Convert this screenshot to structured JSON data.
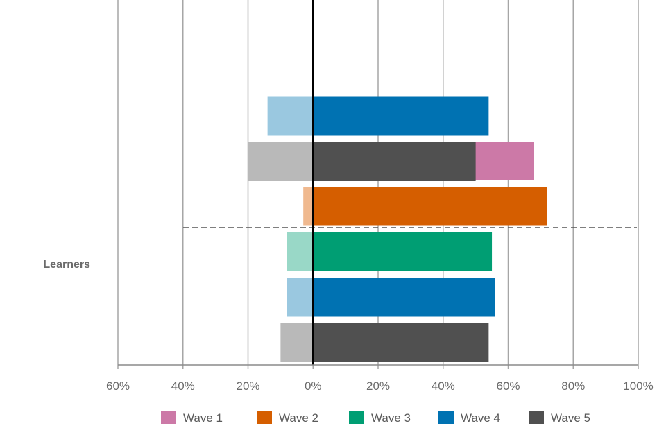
{
  "chart_data": {
    "type": "bar",
    "orientation": "horizontal-diverging",
    "xlim": [
      -60,
      100
    ],
    "x_ticks": [
      "60%",
      "40%",
      "20%",
      "0%",
      "20%",
      "40%",
      "60%",
      "80%",
      "100%"
    ],
    "categories": [
      "",
      "Learners"
    ],
    "grid": true,
    "legend_position": "bottom",
    "series": [
      {
        "name": "Wave 1",
        "color": "#cc79a7",
        "light_color": "#eccadf",
        "negative": [
          null,
          -3
        ],
        "positive": [
          null,
          68
        ]
      },
      {
        "name": "Wave 2",
        "color": "#d55e00",
        "light_color": "#f0b98f",
        "negative": [
          null,
          -3
        ],
        "positive": [
          null,
          72
        ]
      },
      {
        "name": "Wave 3",
        "color": "#009e73",
        "light_color": "#99d8c7",
        "negative": [
          null,
          -8
        ],
        "positive": [
          null,
          55
        ]
      },
      {
        "name": "Wave 4",
        "color": "#0072b2",
        "light_color": "#9ac8e0",
        "negative": [
          -14,
          -8
        ],
        "positive": [
          54,
          56
        ]
      },
      {
        "name": "Wave 5",
        "color": "#505050",
        "light_color": "#b9b9b9",
        "negative": [
          -20,
          -10
        ],
        "positive": [
          50,
          54
        ]
      }
    ]
  }
}
